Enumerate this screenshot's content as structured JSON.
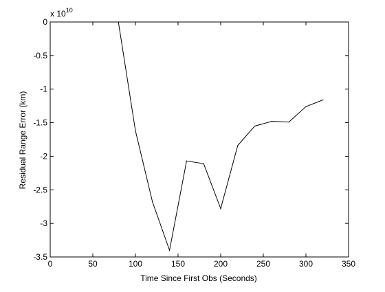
{
  "chart_data": {
    "type": "line",
    "title": "",
    "xlabel": "Time Since First Obs (Seconds)",
    "ylabel": "Residual Range Error (km)",
    "exponent_label": {
      "prefix": "x 10",
      "power": "10"
    },
    "xlim": [
      0,
      350
    ],
    "ylim": [
      -3.5,
      0
    ],
    "x_ticks": [
      0,
      50,
      100,
      150,
      200,
      250,
      300,
      350
    ],
    "y_ticks": [
      0,
      -0.5,
      -1,
      -1.5,
      -2,
      -2.5,
      -3,
      -3.5
    ],
    "x_tick_labels": [
      "0",
      "50",
      "100",
      "150",
      "200",
      "250",
      "300",
      "350"
    ],
    "y_tick_labels": [
      "0",
      "-0.5",
      "-1",
      "-1.5",
      "-2",
      "-2.5",
      "-3",
      "-3.5"
    ],
    "grid": false,
    "series": [
      {
        "color": "#000000",
        "x": [
          80,
          100,
          120,
          140,
          160,
          180,
          200,
          220,
          240,
          260,
          280,
          300,
          320
        ],
        "y": [
          0.0,
          -1.62,
          -2.68,
          -3.4,
          -2.07,
          -2.11,
          -2.78,
          -1.84,
          -1.55,
          -1.48,
          -1.49,
          -1.26,
          -1.16
        ]
      }
    ]
  }
}
